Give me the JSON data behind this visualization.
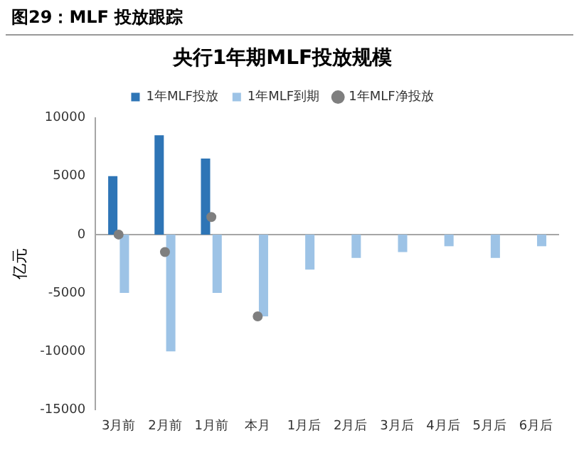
{
  "chart_data": {
    "type": "bar",
    "title": "央行1年期MLF投放规模",
    "ylabel": "亿元",
    "annotations": [
      "图29：MLF 投放跟踪"
    ],
    "categories": [
      "3月前",
      "2月前",
      "1月前",
      "本月",
      "1月后",
      "2月后",
      "3月后",
      "4月后",
      "5月后",
      "6月后"
    ],
    "series": [
      {
        "name": "1年MLF投放",
        "color": "#2e75b6",
        "values": [
          5000,
          8500,
          6500,
          null,
          null,
          null,
          null,
          null,
          null,
          null
        ]
      },
      {
        "name": "1年MLF到期",
        "color": "#9dc3e6",
        "values": [
          -5000,
          -10000,
          -5000,
          -7000,
          -3000,
          -2000,
          -1500,
          -1000,
          -2000,
          -1000
        ]
      },
      {
        "name": "1年MLF净投放",
        "type": "scatter",
        "color": "#7f7f7f",
        "values": [
          0,
          -1500,
          1500,
          -7000,
          null,
          null,
          null,
          null,
          null,
          null
        ]
      }
    ],
    "ylim": [
      -15000,
      10000
    ],
    "yticks": [
      -15000,
      -10000,
      -5000,
      0,
      5000,
      10000
    ],
    "ref_lines": [
      {
        "axis": "y",
        "value": 0,
        "color": "#a6a6a6"
      }
    ],
    "grid": false,
    "legend": "top",
    "marker": "circle"
  }
}
